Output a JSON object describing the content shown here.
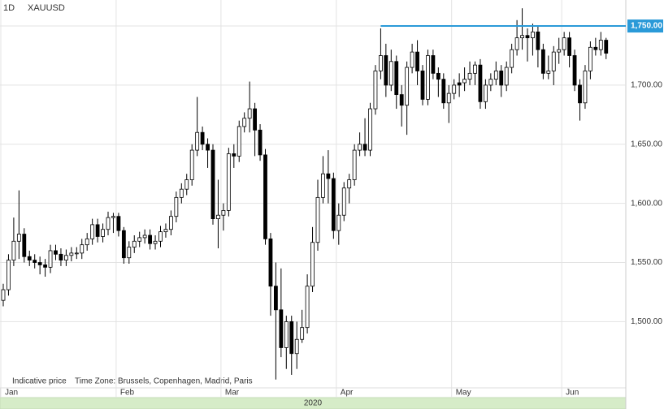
{
  "chart_data": {
    "type": "candlestick",
    "interval": "1D",
    "title": "XAUUSD",
    "notes": [
      "Indicative price",
      "Time Zone: Brussels, Copenhagen, Madrid, Paris"
    ],
    "year": "2020",
    "categories": [
      "Jan",
      null,
      null,
      null,
      null,
      null,
      null,
      null,
      null,
      null,
      null,
      null,
      null,
      null,
      null,
      null,
      null,
      null,
      null,
      null,
      null,
      null,
      "Feb",
      null,
      null,
      null,
      null,
      null,
      null,
      null,
      null,
      null,
      null,
      null,
      null,
      null,
      null,
      null,
      null,
      null,
      null,
      null,
      "Mar",
      null,
      null,
      null,
      null,
      null,
      null,
      null,
      null,
      null,
      null,
      null,
      null,
      null,
      null,
      null,
      null,
      null,
      null,
      null,
      null,
      null,
      "Apr",
      null,
      null,
      null,
      null,
      null,
      null,
      null,
      null,
      null,
      null,
      null,
      null,
      null,
      null,
      null,
      null,
      null,
      null,
      null,
      null,
      null,
      "May",
      null,
      null,
      null,
      null,
      null,
      null,
      null,
      null,
      null,
      null,
      null,
      null,
      null,
      null,
      null,
      null,
      null,
      null,
      null,
      null,
      "Jun",
      null,
      null,
      null,
      null,
      null,
      null,
      null,
      null
    ],
    "open": [
      1518,
      1527,
      1552,
      1568,
      1574,
      1555,
      1552,
      1550,
      1548,
      1546,
      1560,
      1557,
      1552,
      1556,
      1558,
      1558,
      1565,
      1570,
      1582,
      1572,
      1578,
      1588,
      1589,
      1577,
      1554,
      1563,
      1568,
      1571,
      1573,
      1566,
      1568,
      1576,
      1578,
      1589,
      1605,
      1612,
      1620,
      1645,
      1660,
      1650,
      1645,
      1587,
      1590,
      1594,
      1642,
      1640,
      1665,
      1672,
      1680,
      1662,
      1641,
      1570,
      1530,
      1510,
      1478,
      1500,
      1473,
      1485,
      1495,
      1530,
      1567,
      1605,
      1625,
      1621,
      1577,
      1590,
      1613,
      1620,
      1645,
      1650,
      1645,
      1680,
      1712,
      1725,
      1700,
      1720,
      1692,
      1683,
      1715,
      1728,
      1712,
      1688,
      1725,
      1710,
      1705,
      1685,
      1693,
      1702,
      1702,
      1705,
      1710,
      1717,
      1686,
      1700,
      1705,
      1712,
      1700,
      1715,
      1730,
      1740,
      1742,
      1740,
      1745,
      1730,
      1710,
      1712,
      1728,
      1730,
      1740,
      1725,
      1700,
      1685,
      1712,
      1732,
      1730,
      1738
    ],
    "high": [
      1532,
      1557,
      1588,
      1611,
      1579,
      1560,
      1557,
      1555,
      1553,
      1565,
      1565,
      1562,
      1561,
      1563,
      1563,
      1570,
      1575,
      1587,
      1587,
      1583,
      1593,
      1592,
      1592,
      1580,
      1568,
      1573,
      1576,
      1578,
      1578,
      1573,
      1581,
      1583,
      1594,
      1610,
      1617,
      1625,
      1650,
      1690,
      1665,
      1655,
      1650,
      1620,
      1600,
      1647,
      1650,
      1670,
      1677,
      1703,
      1685,
      1667,
      1646,
      1575,
      1550,
      1545,
      1505,
      1505,
      1500,
      1510,
      1540,
      1580,
      1620,
      1640,
      1645,
      1626,
      1600,
      1618,
      1625,
      1650,
      1660,
      1672,
      1685,
      1717,
      1748,
      1735,
      1730,
      1725,
      1700,
      1720,
      1735,
      1738,
      1717,
      1730,
      1730,
      1715,
      1710,
      1700,
      1705,
      1710,
      1715,
      1720,
      1720,
      1722,
      1705,
      1710,
      1720,
      1717,
      1720,
      1735,
      1755,
      1765,
      1748,
      1752,
      1750,
      1735,
      1725,
      1733,
      1740,
      1745,
      1745,
      1730,
      1705,
      1717,
      1737,
      1740,
      1745,
      1740
    ],
    "low": [
      1513,
      1522,
      1547,
      1553,
      1550,
      1547,
      1545,
      1540,
      1538,
      1541,
      1552,
      1547,
      1547,
      1551,
      1553,
      1553,
      1560,
      1565,
      1567,
      1567,
      1573,
      1575,
      1572,
      1549,
      1549,
      1558,
      1563,
      1566,
      1561,
      1561,
      1563,
      1571,
      1573,
      1584,
      1600,
      1607,
      1615,
      1640,
      1645,
      1630,
      1582,
      1562,
      1577,
      1589,
      1630,
      1635,
      1660,
      1660,
      1640,
      1636,
      1565,
      1505,
      1451,
      1470,
      1460,
      1455,
      1460,
      1482,
      1490,
      1525,
      1560,
      1600,
      1600,
      1570,
      1565,
      1585,
      1600,
      1615,
      1640,
      1640,
      1640,
      1675,
      1705,
      1690,
      1695,
      1680,
      1665,
      1658,
      1710,
      1700,
      1683,
      1683,
      1705,
      1690,
      1680,
      1668,
      1688,
      1690,
      1695,
      1700,
      1700,
      1680,
      1680,
      1695,
      1700,
      1690,
      1695,
      1710,
      1725,
      1730,
      1720,
      1725,
      1715,
      1705,
      1705,
      1700,
      1718,
      1725,
      1715,
      1695,
      1670,
      1680,
      1705,
      1725,
      1725,
      1722
    ],
    "close": [
      1527,
      1552,
      1568,
      1574,
      1555,
      1552,
      1550,
      1548,
      1546,
      1560,
      1557,
      1552,
      1556,
      1558,
      1558,
      1565,
      1570,
      1582,
      1572,
      1578,
      1588,
      1589,
      1577,
      1554,
      1563,
      1568,
      1571,
      1573,
      1566,
      1568,
      1576,
      1578,
      1589,
      1605,
      1612,
      1620,
      1645,
      1660,
      1650,
      1645,
      1587,
      1590,
      1594,
      1642,
      1640,
      1665,
      1672,
      1680,
      1662,
      1641,
      1570,
      1530,
      1510,
      1478,
      1500,
      1473,
      1485,
      1495,
      1530,
      1567,
      1605,
      1625,
      1621,
      1577,
      1590,
      1613,
      1620,
      1645,
      1650,
      1645,
      1680,
      1712,
      1725,
      1700,
      1720,
      1692,
      1683,
      1715,
      1728,
      1712,
      1688,
      1725,
      1710,
      1705,
      1685,
      1693,
      1700,
      1700,
      1705,
      1710,
      1717,
      1686,
      1700,
      1705,
      1712,
      1700,
      1715,
      1730,
      1740,
      1742,
      1740,
      1745,
      1730,
      1710,
      1712,
      1728,
      1730,
      1740,
      1725,
      1700,
      1685,
      1712,
      1732,
      1730,
      1738,
      1727
    ],
    "level": {
      "value": 1750,
      "label": "1,750.00",
      "color": "#2a9ad8"
    },
    "ylim": [
      1444,
      1772
    ],
    "yticks": [
      {
        "value": 1500,
        "label": "1,500.00"
      },
      {
        "value": 1550,
        "label": "1,550.00"
      },
      {
        "value": 1600,
        "label": "1,600.00"
      },
      {
        "value": 1650,
        "label": "1,650.00"
      },
      {
        "value": 1700,
        "label": "1,700.00"
      },
      {
        "value": 1750,
        "label": "1,750.00"
      }
    ],
    "grid": true
  }
}
